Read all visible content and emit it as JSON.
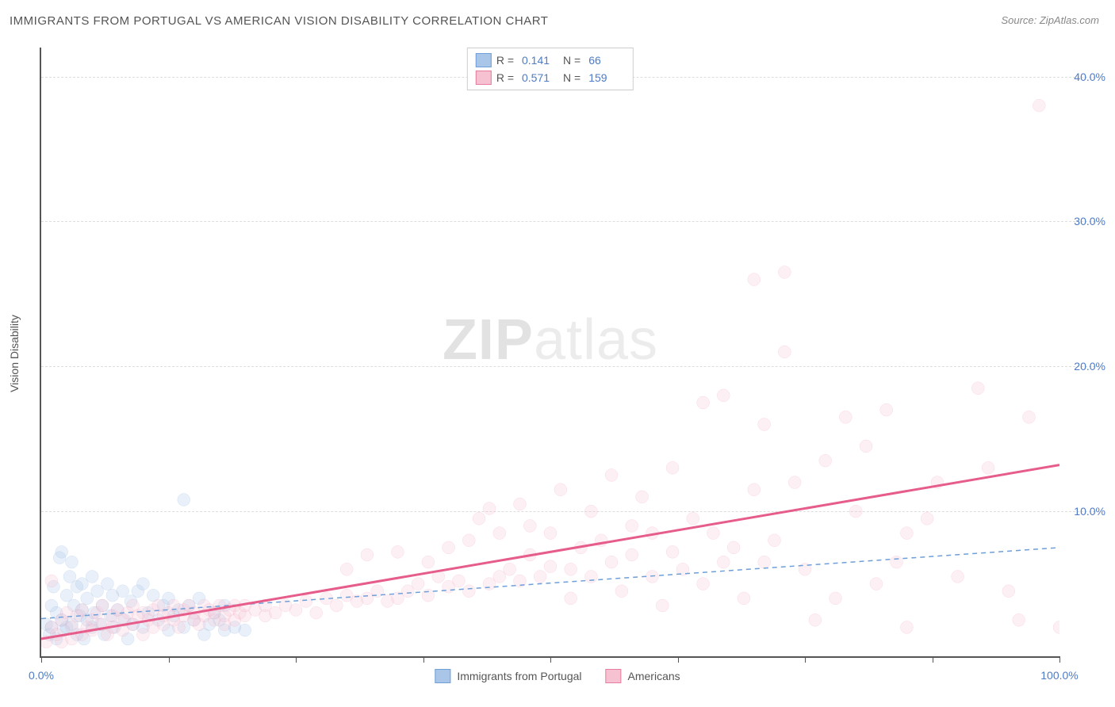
{
  "title": "IMMIGRANTS FROM PORTUGAL VS AMERICAN VISION DISABILITY CORRELATION CHART",
  "source_prefix": "Source: ",
  "source": "ZipAtlas.com",
  "ylabel": "Vision Disability",
  "watermark_zip": "ZIP",
  "watermark_atlas": "atlas",
  "chart": {
    "type": "scatter",
    "background_color": "#ffffff",
    "grid_color": "#dddddd",
    "axis_color": "#555555",
    "xlim": [
      0,
      100
    ],
    "ylim": [
      0,
      42
    ],
    "xtick_positions": [
      0,
      12.5,
      25,
      37.5,
      50,
      62.5,
      75,
      87.5,
      100
    ],
    "xtick_labels_shown": {
      "0": "0.0%",
      "100": "100.0%"
    },
    "ytick_positions": [
      10,
      20,
      30,
      40
    ],
    "ytick_labels": [
      "10.0%",
      "20.0%",
      "30.0%",
      "40.0%"
    ],
    "marker_radius": 8,
    "marker_stroke_width": 1.5,
    "marker_fill_opacity": 0.25,
    "series": [
      {
        "name": "Immigrants from Portugal",
        "color": "#6f9fd8",
        "fill": "#a9c5e8",
        "R": "0.141",
        "N": "66",
        "trend": {
          "style": "dashed",
          "width": 1.5,
          "color": "#6f9fd8",
          "y_at_x0": 2.6,
          "y_at_x100": 7.5
        },
        "points": [
          [
            0.5,
            2.2
          ],
          [
            0.8,
            1.5
          ],
          [
            1,
            3.5
          ],
          [
            1,
            2
          ],
          [
            1.2,
            4.8
          ],
          [
            1.5,
            1.2
          ],
          [
            1.5,
            3
          ],
          [
            1.8,
            6.8
          ],
          [
            2,
            2.5
          ],
          [
            2,
            7.2
          ],
          [
            2.2,
            1.8
          ],
          [
            2.5,
            4.2
          ],
          [
            2.5,
            2
          ],
          [
            2.8,
            5.5
          ],
          [
            3,
            6.5
          ],
          [
            3,
            2.2
          ],
          [
            3.2,
            3.5
          ],
          [
            3.5,
            4.8
          ],
          [
            3.5,
            1.5
          ],
          [
            3.8,
            2.8
          ],
          [
            4,
            5
          ],
          [
            4,
            3.2
          ],
          [
            4.2,
            1.2
          ],
          [
            4.5,
            2.5
          ],
          [
            4.5,
            4
          ],
          [
            5,
            5.5
          ],
          [
            5,
            2
          ],
          [
            5.2,
            3
          ],
          [
            5.5,
            4.5
          ],
          [
            5.8,
            2.2
          ],
          [
            6,
            3.5
          ],
          [
            6.2,
            1.5
          ],
          [
            6.5,
            5
          ],
          [
            6.8,
            2.8
          ],
          [
            7,
            4.2
          ],
          [
            7.2,
            2
          ],
          [
            7.5,
            3.2
          ],
          [
            8,
            4.5
          ],
          [
            8.2,
            2.5
          ],
          [
            8.5,
            1.2
          ],
          [
            8.8,
            3.8
          ],
          [
            9,
            2.2
          ],
          [
            9.5,
            4.5
          ],
          [
            10,
            5
          ],
          [
            10,
            2
          ],
          [
            10.5,
            3
          ],
          [
            11,
            4.2
          ],
          [
            11.5,
            2.5
          ],
          [
            12,
            3.5
          ],
          [
            12.5,
            4
          ],
          [
            12.5,
            1.8
          ],
          [
            13,
            2.8
          ],
          [
            13.5,
            3.2
          ],
          [
            14,
            2
          ],
          [
            14,
            10.8
          ],
          [
            14.5,
            3.5
          ],
          [
            15,
            2.5
          ],
          [
            15.5,
            4
          ],
          [
            16,
            1.5
          ],
          [
            16.5,
            2.2
          ],
          [
            17,
            3
          ],
          [
            17.5,
            2.5
          ],
          [
            18,
            1.8
          ],
          [
            18,
            3.5
          ],
          [
            19,
            2
          ],
          [
            20,
            1.8
          ]
        ]
      },
      {
        "name": "Americans",
        "color": "#e87ba0",
        "fill": "#f6c2d2",
        "R": "0.571",
        "N": "159",
        "trend": {
          "style": "solid",
          "width": 3,
          "color": "#e65c8a",
          "y_at_x0": 1.2,
          "y_at_x100": 13.2
        },
        "points": [
          [
            0.5,
            1
          ],
          [
            1,
            5.2
          ],
          [
            1,
            2
          ],
          [
            1.5,
            1.5
          ],
          [
            2,
            2.5
          ],
          [
            2,
            1
          ],
          [
            2.5,
            3
          ],
          [
            3,
            2
          ],
          [
            3,
            1.2
          ],
          [
            3.5,
            2.8
          ],
          [
            4,
            1.5
          ],
          [
            4,
            3.2
          ],
          [
            4.5,
            2
          ],
          [
            5,
            2.5
          ],
          [
            5,
            1.8
          ],
          [
            5.5,
            3
          ],
          [
            6,
            2.2
          ],
          [
            6,
            3.5
          ],
          [
            6.5,
            1.5
          ],
          [
            7,
            2.8
          ],
          [
            7,
            2
          ],
          [
            7.5,
            3.2
          ],
          [
            8,
            1.8
          ],
          [
            8,
            2.5
          ],
          [
            8.5,
            3
          ],
          [
            9,
            2.2
          ],
          [
            9,
            3.5
          ],
          [
            9.5,
            2.8
          ],
          [
            10,
            1.5
          ],
          [
            10,
            3
          ],
          [
            10.5,
            2.5
          ],
          [
            11,
            3.2
          ],
          [
            11,
            2
          ],
          [
            11.5,
            3.5
          ],
          [
            12,
            2.8
          ],
          [
            12,
            2.2
          ],
          [
            12.5,
            3
          ],
          [
            13,
            2.5
          ],
          [
            13,
            3.5
          ],
          [
            13.5,
            2
          ],
          [
            14,
            3.2
          ],
          [
            14,
            2.8
          ],
          [
            14.5,
            3.5
          ],
          [
            15,
            2.5
          ],
          [
            15,
            3
          ],
          [
            15.5,
            2.2
          ],
          [
            16,
            3.5
          ],
          [
            16,
            2.8
          ],
          [
            16.5,
            3.2
          ],
          [
            17,
            2.5
          ],
          [
            17,
            3
          ],
          [
            17.5,
            3.5
          ],
          [
            18,
            2.8
          ],
          [
            18,
            2.2
          ],
          [
            18.5,
            3.2
          ],
          [
            19,
            2.5
          ],
          [
            19,
            3.5
          ],
          [
            19.5,
            3
          ],
          [
            20,
            2.8
          ],
          [
            20,
            3.5
          ],
          [
            21,
            3.2
          ],
          [
            22,
            3.5
          ],
          [
            22,
            2.8
          ],
          [
            23,
            3
          ],
          [
            24,
            3.5
          ],
          [
            25,
            3.2
          ],
          [
            26,
            3.8
          ],
          [
            27,
            3
          ],
          [
            28,
            4
          ],
          [
            29,
            3.5
          ],
          [
            30,
            4.2
          ],
          [
            30,
            6
          ],
          [
            31,
            3.8
          ],
          [
            32,
            7
          ],
          [
            32,
            4
          ],
          [
            33,
            4.5
          ],
          [
            34,
            3.8
          ],
          [
            35,
            7.2
          ],
          [
            35,
            4
          ],
          [
            36,
            4.5
          ],
          [
            37,
            5
          ],
          [
            38,
            4.2
          ],
          [
            38,
            6.5
          ],
          [
            39,
            5.5
          ],
          [
            40,
            4.8
          ],
          [
            40,
            7.5
          ],
          [
            41,
            5.2
          ],
          [
            42,
            8
          ],
          [
            42,
            4.5
          ],
          [
            43,
            9.5
          ],
          [
            44,
            5
          ],
          [
            44,
            10.2
          ],
          [
            45,
            5.5
          ],
          [
            45,
            8.5
          ],
          [
            46,
            6
          ],
          [
            47,
            10.5
          ],
          [
            47,
            5.2
          ],
          [
            48,
            7
          ],
          [
            48,
            9
          ],
          [
            49,
            5.5
          ],
          [
            50,
            6.2
          ],
          [
            50,
            8.5
          ],
          [
            51,
            11.5
          ],
          [
            52,
            6
          ],
          [
            52,
            4
          ],
          [
            53,
            7.5
          ],
          [
            54,
            10
          ],
          [
            54,
            5.5
          ],
          [
            55,
            8
          ],
          [
            56,
            12.5
          ],
          [
            56,
            6.5
          ],
          [
            57,
            4.5
          ],
          [
            58,
            9
          ],
          [
            58,
            7
          ],
          [
            59,
            11
          ],
          [
            60,
            5.5
          ],
          [
            60,
            8.5
          ],
          [
            61,
            3.5
          ],
          [
            62,
            7.2
          ],
          [
            62,
            13
          ],
          [
            63,
            6
          ],
          [
            64,
            9.5
          ],
          [
            65,
            5
          ],
          [
            65,
            17.5
          ],
          [
            66,
            8.5
          ],
          [
            67,
            18
          ],
          [
            67,
            6.5
          ],
          [
            68,
            7.5
          ],
          [
            69,
            4
          ],
          [
            70,
            11.5
          ],
          [
            70,
            26
          ],
          [
            71,
            6.5
          ],
          [
            71,
            16
          ],
          [
            72,
            8
          ],
          [
            73,
            26.5
          ],
          [
            73,
            21
          ],
          [
            74,
            12
          ],
          [
            75,
            6
          ],
          [
            76,
            2.5
          ],
          [
            77,
            13.5
          ],
          [
            78,
            4
          ],
          [
            79,
            16.5
          ],
          [
            80,
            10
          ],
          [
            81,
            14.5
          ],
          [
            82,
            5
          ],
          [
            83,
            17
          ],
          [
            84,
            6.5
          ],
          [
            85,
            8.5
          ],
          [
            85,
            2
          ],
          [
            87,
            9.5
          ],
          [
            88,
            12
          ],
          [
            90,
            5.5
          ],
          [
            92,
            18.5
          ],
          [
            93,
            13
          ],
          [
            95,
            4.5
          ],
          [
            96,
            2.5
          ],
          [
            97,
            16.5
          ],
          [
            98,
            38
          ],
          [
            100,
            2
          ]
        ]
      }
    ]
  },
  "legend_bottom": [
    {
      "label": "Immigrants from Portugal",
      "color": "#6f9fd8",
      "fill": "#a9c5e8"
    },
    {
      "label": "Americans",
      "color": "#e87ba0",
      "fill": "#f6c2d2"
    }
  ]
}
